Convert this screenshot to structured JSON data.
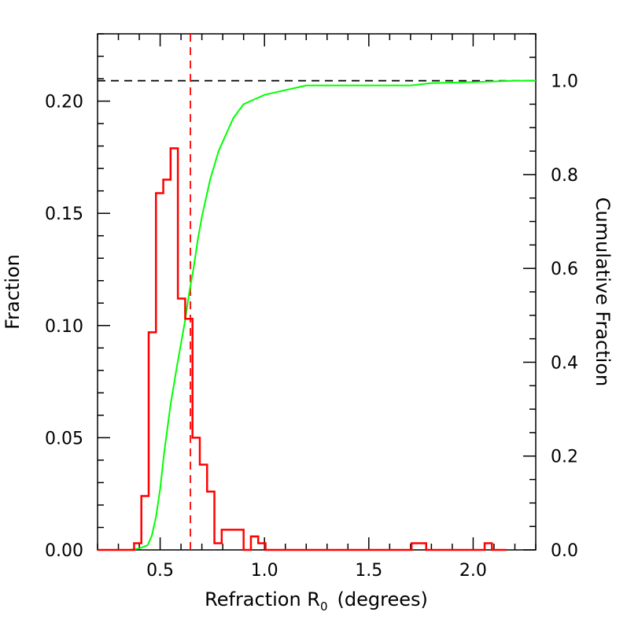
{
  "chart_data": {
    "type": "histogram",
    "xlabel": "Refraction R",
    "xlabel_subscript": "0",
    "xlabel_suffix": "(degrees)",
    "ylabel_left": "Fraction",
    "ylabel_right": "Cumulative Fraction",
    "xlim": [
      0.2,
      2.3
    ],
    "ylim_left": [
      0.0,
      0.23
    ],
    "ylim_right": [
      0.0,
      1.1
    ],
    "x_ticks": [
      "0.5",
      "1.0",
      "1.5",
      "2.0"
    ],
    "x_tick_values": [
      0.5,
      1.0,
      1.5,
      2.0
    ],
    "y_left_ticks": [
      "0.00",
      "0.05",
      "0.10",
      "0.15",
      "0.20"
    ],
    "y_left_tick_values": [
      0.0,
      0.05,
      0.1,
      0.15,
      0.2
    ],
    "y_right_ticks": [
      "0.0",
      "0.2",
      "0.4",
      "0.6",
      "0.8",
      "1.0"
    ],
    "y_right_tick_values": [
      0.0,
      0.2,
      0.4,
      0.6,
      0.8,
      1.0
    ],
    "histogram": {
      "name": "Fraction",
      "color": "#ff0000",
      "bin_edges": [
        0.375,
        0.41,
        0.445,
        0.48,
        0.515,
        0.55,
        0.585,
        0.62,
        0.655,
        0.69,
        0.725,
        0.76,
        0.795,
        0.83,
        0.865,
        0.9,
        0.935,
        0.97,
        1.005,
        1.04,
        1.075,
        1.11,
        1.145,
        1.18,
        1.215,
        1.25,
        1.285,
        1.32,
        1.355,
        1.39,
        1.425,
        1.46,
        1.495,
        1.53,
        1.565,
        1.6,
        1.635,
        1.67,
        1.705,
        1.74,
        1.775,
        1.81,
        1.845,
        1.88,
        1.915,
        1.95,
        1.985,
        2.02,
        2.055,
        2.09,
        2.125,
        2.16
      ],
      "values": [
        0.003,
        0.024,
        0.097,
        0.159,
        0.165,
        0.179,
        0.112,
        0.103,
        0.05,
        0.038,
        0.026,
        0.003,
        0.009,
        0.009,
        0.009,
        0.0,
        0.006,
        0.003,
        0.0,
        0.0,
        0.0,
        0.0,
        0.0,
        0.0,
        0.0,
        0.0,
        0.0,
        0.0,
        0.0,
        0.0,
        0.0,
        0.0,
        0.0,
        0.0,
        0.0,
        0.0,
        0.0,
        0.0,
        0.003,
        0.003,
        0.0,
        0.0,
        0.0,
        0.0,
        0.0,
        0.0,
        0.0,
        0.0,
        0.003,
        0.0,
        0.0
      ]
    },
    "cumulative": {
      "name": "Cumulative Fraction",
      "color": "#00ff00",
      "x": [
        0.2,
        0.35,
        0.4,
        0.44,
        0.46,
        0.48,
        0.5,
        0.52,
        0.55,
        0.58,
        0.6,
        0.62,
        0.64,
        0.66,
        0.68,
        0.7,
        0.72,
        0.74,
        0.76,
        0.78,
        0.8,
        0.82,
        0.85,
        0.9,
        0.95,
        1.0,
        1.1,
        1.2,
        1.3,
        1.5,
        1.7,
        1.8,
        2.0,
        2.2,
        2.3
      ],
      "values": [
        0.0,
        0.0,
        0.003,
        0.01,
        0.03,
        0.07,
        0.13,
        0.21,
        0.31,
        0.39,
        0.44,
        0.49,
        0.55,
        0.6,
        0.66,
        0.71,
        0.75,
        0.79,
        0.82,
        0.85,
        0.87,
        0.89,
        0.92,
        0.95,
        0.96,
        0.97,
        0.98,
        0.99,
        0.99,
        0.99,
        0.99,
        0.995,
        0.997,
        1.0,
        1.0
      ]
    },
    "median_line": {
      "x": 0.645,
      "color": "#ff0000",
      "style": "dashed"
    },
    "reference_line": {
      "y_right": 1.0,
      "color": "#000000",
      "style": "dashed"
    }
  }
}
